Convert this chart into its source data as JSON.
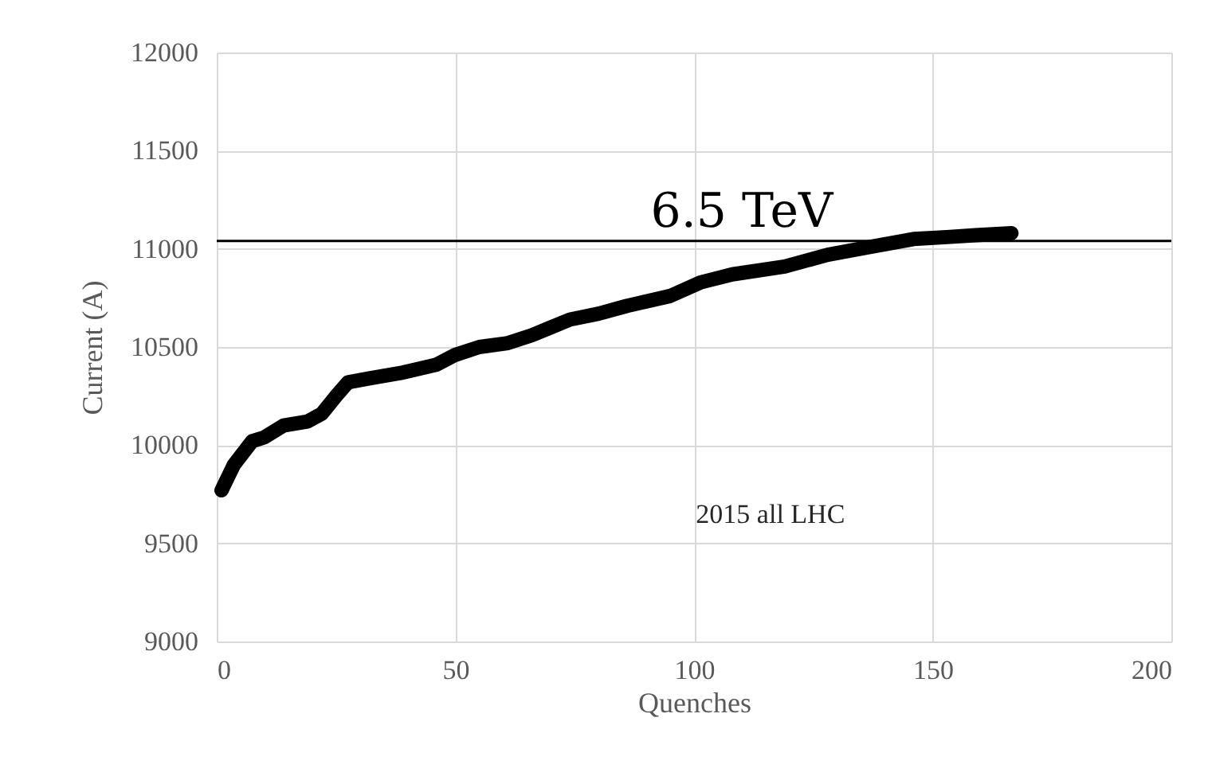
{
  "chart_data": {
    "type": "line",
    "xlabel": "Quenches",
    "ylabel": "Current (A)",
    "x": [
      1,
      3.6,
      7.4,
      10,
      14,
      19,
      22,
      25,
      27.5,
      32,
      39,
      46,
      50,
      55,
      61,
      66,
      70,
      74,
      80,
      86,
      95,
      101.5,
      108,
      119,
      128,
      137,
      146,
      153,
      159,
      166.5
    ],
    "series": [
      {
        "color": "#000000",
        "values": [
          9770,
          9900,
          10020,
          10040,
          10100,
          10120,
          10160,
          10250,
          10320,
          10340,
          10370,
          10410,
          10460,
          10500,
          10520,
          10560,
          10600,
          10640,
          10670,
          10710,
          10760,
          10830,
          10870,
          10910,
          10970,
          11010,
          11050,
          11060,
          11070,
          11080
        ]
      }
    ],
    "xlim": [
      0,
      200
    ],
    "xticks": [
      0,
      50,
      100,
      150,
      200
    ],
    "ylim": [
      9000,
      12000
    ],
    "yticks": [
      9000,
      9500,
      10000,
      10500,
      11000,
      11500,
      12000
    ],
    "grid": true,
    "ref_lines": [
      {
        "axis": "y",
        "value": 11040,
        "label": "6.5 TeV",
        "color": "#000000"
      }
    ],
    "annotations": [
      "2015 all LHC"
    ]
  }
}
